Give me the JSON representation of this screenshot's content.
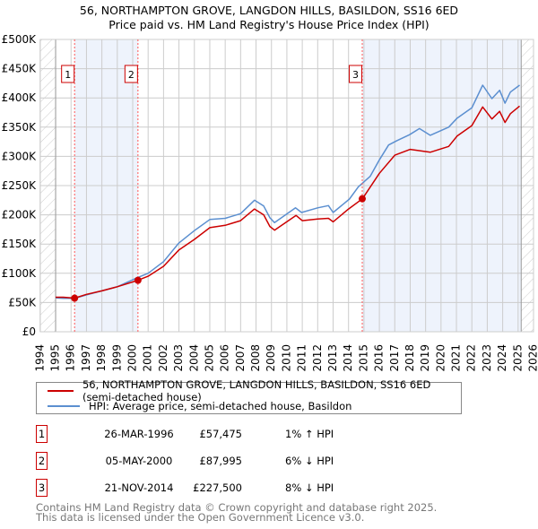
{
  "chart_data": {
    "type": "line",
    "title": "56, NORTHAMPTON GROVE, LANGDON HILLS, BASILDON, SS16 6ED",
    "subtitle": "Price paid vs. HM Land Registry's House Price Index (HPI)",
    "xlim": [
      1994,
      2026
    ],
    "ylim": [
      0,
      500000
    ],
    "x_ticks": [
      "1994",
      "1995",
      "1996",
      "1997",
      "1998",
      "1999",
      "2000",
      "2001",
      "2002",
      "2003",
      "2004",
      "2005",
      "2006",
      "2007",
      "2008",
      "2009",
      "2010",
      "2011",
      "2012",
      "2013",
      "2014",
      "2015",
      "2016",
      "2017",
      "2018",
      "2019",
      "2020",
      "2021",
      "2022",
      "2023",
      "2024",
      "2025",
      "2026"
    ],
    "y_ticks": [
      {
        "value": 0,
        "label": "£0"
      },
      {
        "value": 50000,
        "label": "£50K"
      },
      {
        "value": 100000,
        "label": "£100K"
      },
      {
        "value": 150000,
        "label": "£150K"
      },
      {
        "value": 200000,
        "label": "£200K"
      },
      {
        "value": 250000,
        "label": "£250K"
      },
      {
        "value": 300000,
        "label": "£300K"
      },
      {
        "value": 350000,
        "label": "£350K"
      },
      {
        "value": 400000,
        "label": "£400K"
      },
      {
        "value": 450000,
        "label": "£450K"
      },
      {
        "value": 500000,
        "label": "£500K"
      }
    ],
    "grid": true,
    "data_start": 1995.0,
    "data_end": 2025.2,
    "series": [
      {
        "name": "56, NORTHAMPTON GROVE, LANGDON HILLS, BASILDON, SS16 6ED (semi-detached house)",
        "color": "#cc0000",
        "x": [
          1995.0,
          1995.5,
          1996.23,
          1997,
          1998,
          1999,
          2000.34,
          2001,
          2002,
          2003,
          2004,
          2005,
          2006,
          2007,
          2007.9,
          2008.5,
          2008.9,
          2009.2,
          2010.6,
          2011,
          2012,
          2012.7,
          2013,
          2014,
          2014.9,
          2016,
          2017,
          2018,
          2019.3,
          2020.5,
          2021.05,
          2022,
          2022.7,
          2023.3,
          2023.8,
          2024.15,
          2024.5,
          2025.1
        ],
        "y": [
          59000,
          59000,
          57475,
          64000,
          70000,
          77000,
          87995,
          95000,
          112000,
          140000,
          158000,
          178000,
          182000,
          190000,
          210000,
          200000,
          180000,
          173800,
          199000,
          190000,
          193000,
          194000,
          188000,
          210000,
          227500,
          271000,
          302000,
          312000,
          307000,
          317000,
          335000,
          352600,
          384500,
          364000,
          377000,
          358000,
          373000,
          386000
        ]
      },
      {
        "name": "HPI: Average price, semi-detached house, Basildon",
        "color": "#5b8fd0",
        "x": [
          1995.0,
          1995.5,
          1996.23,
          1997,
          1998,
          1999,
          2000.34,
          2001,
          2002,
          2003,
          2004,
          2005,
          2006,
          2007,
          2007.9,
          2008.5,
          2008.9,
          2009.2,
          2010.56,
          2010.95,
          2012,
          2012.7,
          2013,
          2014.06,
          2014.64,
          2015.4,
          2016,
          2016.6,
          2017.15,
          2017.95,
          2018.6,
          2019.3,
          2020.5,
          2021.05,
          2022,
          2022.7,
          2023.3,
          2023.8,
          2024.15,
          2024.5,
          2025.1
        ],
        "y": [
          58000,
          57000,
          57000,
          63000,
          70000,
          77000,
          93000,
          100000,
          120000,
          152000,
          173000,
          192000,
          194000,
          202000,
          225000,
          215000,
          195000,
          186600,
          212000,
          204000,
          212000,
          215800,
          204000,
          227000,
          248000,
          265800,
          294000,
          319500,
          327000,
          337000,
          347600,
          336000,
          350000,
          365500,
          383000,
          421800,
          398700,
          413000,
          391000,
          410000,
          421800
        ]
      }
    ],
    "sales": [
      {
        "label": "1",
        "x": 1996.23,
        "price": 57475,
        "date": "26-MAR-1996",
        "price_text": "£57,475",
        "hpi_text": "1% ↑ HPI"
      },
      {
        "label": "2",
        "x": 2000.34,
        "price": 87995,
        "date": "05-MAY-2000",
        "price_text": "£87,995",
        "hpi_text": "6% ↓ HPI"
      },
      {
        "label": "3",
        "x": 2014.89,
        "price": 227500,
        "date": "21-NOV-2014",
        "price_text": "£227,500",
        "hpi_text": "8% ↓ HPI"
      }
    ],
    "legend_placement": "below"
  },
  "legend": {
    "property": "56, NORTHAMPTON GROVE, LANGDON HILLS, BASILDON, SS16 6ED (semi-detached house)",
    "hpi": "HPI: Average price, semi-detached house, Basildon"
  },
  "footer": {
    "line1": "Contains HM Land Registry data © Crown copyright and database right 2025.",
    "line2": "This data is licensed under the Open Government Licence v3.0."
  }
}
